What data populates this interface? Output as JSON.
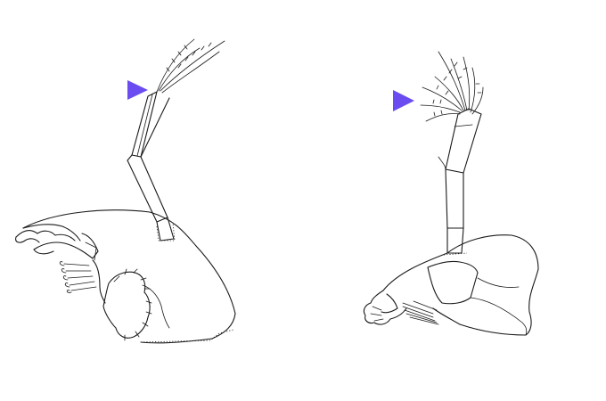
{
  "figure": {
    "panels": [
      {
        "id": "left",
        "subject": "mandible-palp-left"
      },
      {
        "id": "right",
        "subject": "mandible-palp-right"
      }
    ],
    "marker_color": "#6a4cf0",
    "ink_color": "#1a1a1a",
    "background": "#ffffff"
  }
}
